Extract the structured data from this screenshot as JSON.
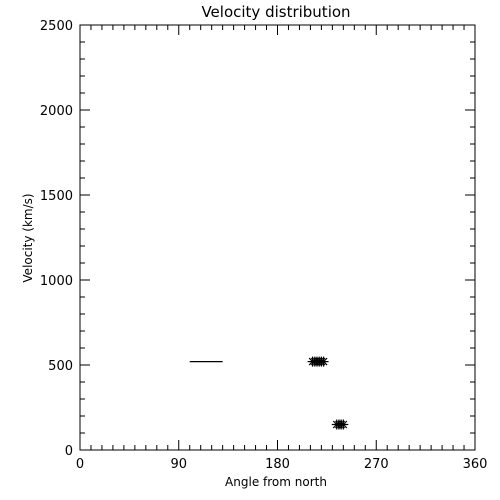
{
  "chart_data": {
    "type": "scatter",
    "title": "Velocity distribution",
    "xlabel": "Angle from north",
    "ylabel": "Velocity (km/s)",
    "xlim": [
      0,
      360
    ],
    "ylim": [
      0,
      2500
    ],
    "xticks": [
      "0",
      "90",
      "180",
      "270",
      "360"
    ],
    "yticks": [
      "0",
      "500",
      "1000",
      "1500",
      "2000",
      "2500"
    ],
    "grid": false,
    "legend": "none",
    "series": [
      {
        "marker": "asterisk",
        "points": [
          {
            "x": 212,
            "y": 520
          },
          {
            "x": 214,
            "y": 520
          },
          {
            "x": 216,
            "y": 520
          },
          {
            "x": 218,
            "y": 520
          },
          {
            "x": 220,
            "y": 520
          },
          {
            "x": 222,
            "y": 520
          },
          {
            "x": 234,
            "y": 150
          },
          {
            "x": 236,
            "y": 150
          },
          {
            "x": 238,
            "y": 150
          },
          {
            "x": 240,
            "y": 150
          }
        ]
      },
      {
        "marker": "line",
        "segments": [
          {
            "x0": 100,
            "x1": 130,
            "y": 520
          }
        ]
      }
    ]
  }
}
